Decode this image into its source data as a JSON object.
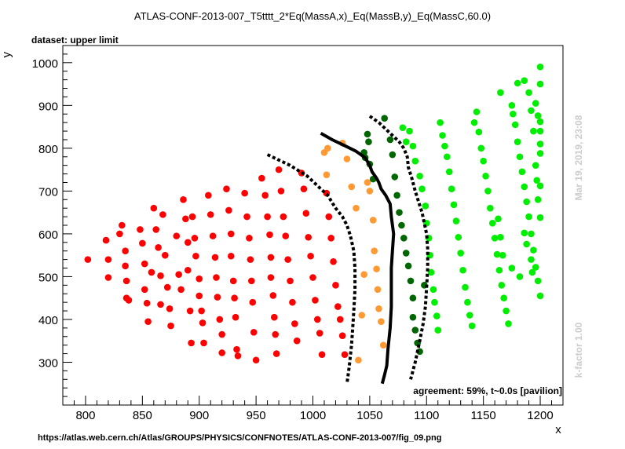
{
  "title": "ATLAS-CONF-2013-007_T5tttt_2*Eq(MassA,x)_Eq(MassB,y)_Eq(MassC,60.0)",
  "subtitle": "dataset: upper limit",
  "timestamp": "Mar 19, 2019, 23:08",
  "kfactor": "k-factor 1.00",
  "agreement": "agreement: 59%, t~0.0s [pavilion]",
  "source_url": "https://atlas.web.cern.ch/Atlas/GROUPS/PHYSICS/CONFNOTES/ATLAS-CONF-2013-007/fig_09.png",
  "colors": {
    "red": "#ff0000",
    "orange": "#ff9933",
    "dark_green": "#006600",
    "green": "#00ee00",
    "curve": "#000000"
  },
  "chart_data": {
    "type": "scatter",
    "title": "ATLAS-CONF-2013-007_T5tttt_2*Eq(MassA,x)_Eq(MassB,y)_Eq(MassC,60.0)",
    "xlabel": "x",
    "ylabel": "y",
    "xlim": [
      780,
      1220
    ],
    "ylim": [
      200,
      1040
    ],
    "xticks": [
      800,
      850,
      900,
      950,
      1000,
      1050,
      1100,
      1150,
      1200
    ],
    "yticks": [
      300,
      400,
      500,
      600,
      700,
      800,
      900,
      1000
    ],
    "grid": false,
    "series": [
      {
        "color": "red",
        "points": [
          [
            802,
            540
          ],
          [
            818,
            585
          ],
          [
            820,
            540
          ],
          [
            820,
            498
          ],
          [
            832,
            620
          ],
          [
            830,
            600
          ],
          [
            835,
            560
          ],
          [
            835,
            525
          ],
          [
            836,
            490
          ],
          [
            836,
            450
          ],
          [
            838,
            445
          ],
          [
            848,
            610
          ],
          [
            850,
            578
          ],
          [
            852,
            530
          ],
          [
            852,
            470
          ],
          [
            854,
            438
          ],
          [
            855,
            395
          ],
          [
            858,
            510
          ],
          [
            860,
            660
          ],
          [
            862,
            610
          ],
          [
            864,
            568
          ],
          [
            866,
            502
          ],
          [
            866,
            435
          ],
          [
            868,
            645
          ],
          [
            870,
            550
          ],
          [
            872,
            475
          ],
          [
            874,
            425
          ],
          [
            875,
            385
          ],
          [
            880,
            595
          ],
          [
            882,
            505
          ],
          [
            884,
            470
          ],
          [
            886,
            680
          ],
          [
            888,
            635
          ],
          [
            890,
            580
          ],
          [
            890,
            515
          ],
          [
            892,
            420
          ],
          [
            893,
            345
          ],
          [
            894,
            640
          ],
          [
            896,
            590
          ],
          [
            897,
            548
          ],
          [
            900,
            495
          ],
          [
            900,
            455
          ],
          [
            902,
            420
          ],
          [
            903,
            392
          ],
          [
            904,
            345
          ],
          [
            908,
            690
          ],
          [
            910,
            645
          ],
          [
            912,
            595
          ],
          [
            914,
            545
          ],
          [
            915,
            498
          ],
          [
            916,
            452
          ],
          [
            918,
            400
          ],
          [
            920,
            365
          ],
          [
            920,
            322
          ],
          [
            924,
            705
          ],
          [
            926,
            655
          ],
          [
            928,
            600
          ],
          [
            928,
            548
          ],
          [
            930,
            490
          ],
          [
            931,
            450
          ],
          [
            932,
            405
          ],
          [
            933,
            330
          ],
          [
            934,
            315
          ],
          [
            940,
            695
          ],
          [
            942,
            640
          ],
          [
            944,
            590
          ],
          [
            945,
            540
          ],
          [
            946,
            490
          ],
          [
            947,
            440
          ],
          [
            948,
            370
          ],
          [
            950,
            305
          ],
          [
            955,
            730
          ],
          [
            958,
            690
          ],
          [
            960,
            640
          ],
          [
            962,
            598
          ],
          [
            963,
            545
          ],
          [
            963,
            498
          ],
          [
            965,
            456
          ],
          [
            966,
            405
          ],
          [
            967,
            365
          ],
          [
            968,
            320
          ],
          [
            970,
            750
          ],
          [
            972,
            700
          ],
          [
            974,
            640
          ],
          [
            976,
            595
          ],
          [
            978,
            540
          ],
          [
            980,
            490
          ],
          [
            982,
            440
          ],
          [
            984,
            390
          ],
          [
            986,
            350
          ],
          [
            990,
            742
          ],
          [
            992,
            705
          ],
          [
            994,
            648
          ],
          [
            996,
            592
          ],
          [
            998,
            548
          ],
          [
            1000,
            498
          ],
          [
            1002,
            445
          ],
          [
            1004,
            400
          ],
          [
            1006,
            368
          ],
          [
            1008,
            318
          ],
          [
            1012,
            695
          ],
          [
            1014,
            640
          ],
          [
            1016,
            590
          ],
          [
            1018,
            535
          ],
          [
            1020,
            480
          ],
          [
            1022,
            430
          ],
          [
            1024,
            400
          ],
          [
            1026,
            362
          ],
          [
            1028,
            318
          ]
        ]
      },
      {
        "color": "orange",
        "points": [
          [
            1010,
            790
          ],
          [
            1012,
            738
          ],
          [
            1013,
            800
          ],
          [
            1026,
            812
          ],
          [
            1030,
            775
          ],
          [
            1034,
            710
          ],
          [
            1038,
            660
          ],
          [
            1040,
            305
          ],
          [
            1043,
            410
          ],
          [
            1045,
            505
          ],
          [
            1048,
            720
          ],
          [
            1050,
            700
          ],
          [
            1053,
            632
          ],
          [
            1054,
            560
          ],
          [
            1056,
            518
          ],
          [
            1057,
            470
          ],
          [
            1058,
            425
          ],
          [
            1060,
            395
          ],
          [
            1062,
            340
          ]
        ]
      },
      {
        "color": "dark_green",
        "points": [
          [
            1045,
            790
          ],
          [
            1046,
            778
          ],
          [
            1048,
            833
          ],
          [
            1049,
            815
          ],
          [
            1050,
            763
          ],
          [
            1053,
            728
          ],
          [
            1063,
            870
          ],
          [
            1068,
            820
          ],
          [
            1070,
            785
          ],
          [
            1072,
            733
          ],
          [
            1074,
            690
          ],
          [
            1076,
            650
          ],
          [
            1078,
            620
          ],
          [
            1080,
            590
          ],
          [
            1082,
            555
          ],
          [
            1084,
            525
          ],
          [
            1086,
            490
          ],
          [
            1088,
            450
          ],
          [
            1088,
            405
          ],
          [
            1090,
            375
          ],
          [
            1092,
            345
          ],
          [
            1094,
            325
          ],
          [
            1098,
            480
          ]
        ]
      },
      {
        "color": "green",
        "points": [
          [
            1079,
            848
          ],
          [
            1082,
            815
          ],
          [
            1085,
            840
          ],
          [
            1088,
            805
          ],
          [
            1090,
            770
          ],
          [
            1094,
            735
          ],
          [
            1096,
            705
          ],
          [
            1099,
            665
          ],
          [
            1100,
            625
          ],
          [
            1102,
            590
          ],
          [
            1103,
            550
          ],
          [
            1104,
            510
          ],
          [
            1106,
            470
          ],
          [
            1107,
            440
          ],
          [
            1109,
            408
          ],
          [
            1110,
            375
          ],
          [
            1112,
            860
          ],
          [
            1114,
            830
          ],
          [
            1116,
            805
          ],
          [
            1118,
            780
          ],
          [
            1120,
            745
          ],
          [
            1122,
            705
          ],
          [
            1124,
            668
          ],
          [
            1126,
            630
          ],
          [
            1128,
            592
          ],
          [
            1130,
            555
          ],
          [
            1132,
            515
          ],
          [
            1134,
            475
          ],
          [
            1136,
            440
          ],
          [
            1138,
            410
          ],
          [
            1140,
            385
          ],
          [
            1142,
            860
          ],
          [
            1144,
            885
          ],
          [
            1146,
            838
          ],
          [
            1148,
            800
          ],
          [
            1150,
            770
          ],
          [
            1152,
            735
          ],
          [
            1154,
            700
          ],
          [
            1156,
            660
          ],
          [
            1158,
            625
          ],
          [
            1160,
            590
          ],
          [
            1162,
            552
          ],
          [
            1164,
            515
          ],
          [
            1166,
            480
          ],
          [
            1168,
            450
          ],
          [
            1170,
            420
          ],
          [
            1172,
            390
          ],
          [
            1175,
            900
          ],
          [
            1176,
            880
          ],
          [
            1178,
            855
          ],
          [
            1180,
            815
          ],
          [
            1182,
            780
          ],
          [
            1184,
            745
          ],
          [
            1186,
            710
          ],
          [
            1188,
            675
          ],
          [
            1190,
            640
          ],
          [
            1192,
            600
          ],
          [
            1194,
            562
          ],
          [
            1196,
            522
          ],
          [
            1198,
            490
          ],
          [
            1200,
            455
          ],
          [
            1163,
            635
          ],
          [
            1165,
            592
          ],
          [
            1167,
            550
          ],
          [
            1175,
            520
          ],
          [
            1182,
            500
          ],
          [
            1186,
            602
          ],
          [
            1188,
            576
          ],
          [
            1192,
            540
          ],
          [
            1193,
            510
          ],
          [
            1196,
            905
          ],
          [
            1198,
            876
          ],
          [
            1200,
            840
          ],
          [
            1200,
            810
          ],
          [
            1165,
            930
          ],
          [
            1180,
            952
          ],
          [
            1190,
            930
          ],
          [
            1192,
            888
          ],
          [
            1194,
            840
          ],
          [
            1196,
            760
          ],
          [
            1197,
            725
          ],
          [
            1198,
            680
          ],
          [
            1200,
            990
          ],
          [
            1200,
            950
          ],
          [
            1200,
            862
          ],
          [
            1200,
            788
          ],
          [
            1200,
            712
          ],
          [
            1200,
            638
          ],
          [
            1186,
            958
          ]
        ]
      }
    ],
    "curves": [
      {
        "style": "dashed",
        "points": [
          [
            960,
            785
          ],
          [
            980,
            760
          ],
          [
            995,
            735
          ],
          [
            1005,
            710
          ],
          [
            1013,
            690
          ],
          [
            1020,
            660
          ],
          [
            1026,
            640
          ],
          [
            1030,
            620
          ],
          [
            1033,
            595
          ],
          [
            1036,
            560
          ],
          [
            1037,
            520
          ],
          [
            1037,
            470
          ],
          [
            1036,
            420
          ],
          [
            1035,
            380
          ],
          [
            1034,
            340
          ],
          [
            1032,
            290
          ],
          [
            1030,
            250
          ]
        ]
      },
      {
        "style": "solid",
        "points": [
          [
            1007,
            835
          ],
          [
            1017,
            820
          ],
          [
            1028,
            806
          ],
          [
            1038,
            793
          ],
          [
            1046,
            778
          ],
          [
            1050,
            760
          ],
          [
            1052,
            745
          ],
          [
            1056,
            730
          ],
          [
            1058,
            720
          ],
          [
            1060,
            705
          ],
          [
            1064,
            690
          ],
          [
            1068,
            670
          ],
          [
            1069,
            640
          ],
          [
            1071,
            600
          ],
          [
            1070,
            560
          ],
          [
            1069,
            520
          ],
          [
            1069,
            480
          ],
          [
            1069,
            430
          ],
          [
            1068,
            380
          ],
          [
            1066,
            330
          ],
          [
            1065,
            292
          ],
          [
            1063,
            270
          ],
          [
            1061,
            250
          ]
        ]
      },
      {
        "style": "dashed",
        "points": [
          [
            1050,
            875
          ],
          [
            1058,
            860
          ],
          [
            1064,
            845
          ],
          [
            1070,
            830
          ],
          [
            1076,
            815
          ],
          [
            1080,
            800
          ],
          [
            1083,
            780
          ],
          [
            1084,
            755
          ],
          [
            1087,
            730
          ],
          [
            1090,
            700
          ],
          [
            1093,
            675
          ],
          [
            1096,
            650
          ],
          [
            1098,
            625
          ],
          [
            1100,
            600
          ],
          [
            1101,
            565
          ],
          [
            1101,
            520
          ],
          [
            1100,
            475
          ],
          [
            1099,
            430
          ],
          [
            1097,
            390
          ],
          [
            1094,
            350
          ],
          [
            1090,
            300
          ],
          [
            1086,
            260
          ]
        ]
      }
    ]
  }
}
